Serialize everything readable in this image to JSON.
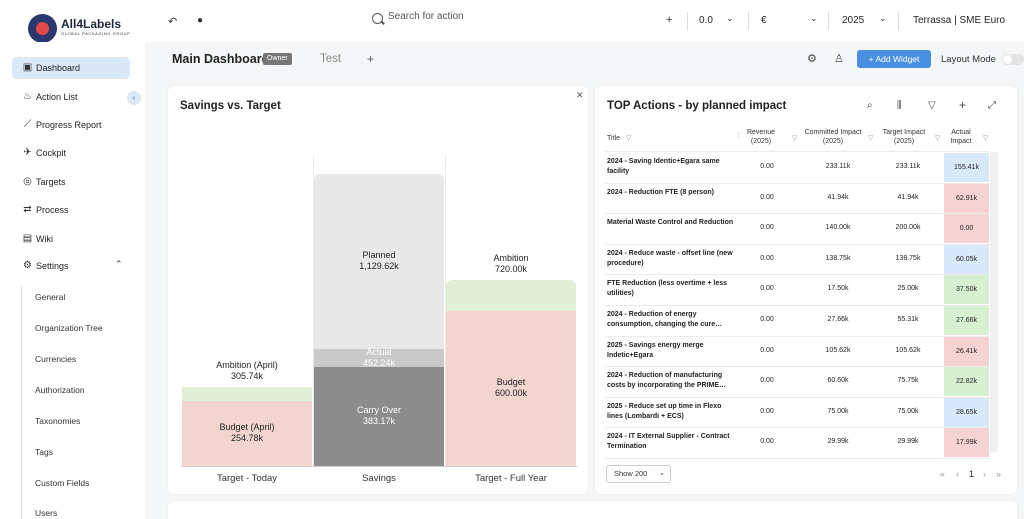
{
  "brand": {
    "name": "All4Labels",
    "tagline": "GLOBAL PACKAGING GROUP"
  },
  "topbar": {
    "search_placeholder": "Search for action",
    "value_select": "0.0",
    "currency_select": "€",
    "year_select": "2025",
    "org_select": "Terrassa | SME Euro"
  },
  "sidebar": {
    "items": [
      {
        "label": "Dashboard",
        "icon": "dashboard-icon"
      },
      {
        "label": "Action List",
        "icon": "flame-icon"
      },
      {
        "label": "Progress Report",
        "icon": "chart-line-icon"
      },
      {
        "label": "Cockpit",
        "icon": "plane-icon"
      },
      {
        "label": "Targets",
        "icon": "target-icon"
      },
      {
        "label": "Process",
        "icon": "process-icon"
      },
      {
        "label": "Wiki",
        "icon": "book-icon"
      },
      {
        "label": "Settings",
        "icon": "gear-icon"
      }
    ],
    "settings_items": [
      "General",
      "Organization Tree",
      "Currencies",
      "Authorization",
      "Taxonomies",
      "Tags",
      "Custom Fields",
      "Users"
    ]
  },
  "header": {
    "title": "Main Dashboard",
    "badge": "Owner",
    "tab2": "Test",
    "add_widget": "Add Widget",
    "layout_mode": "Layout Mode"
  },
  "savings_card": {
    "title": "Savings vs. Target",
    "labels": {
      "ambition_april": "Ambition (April)",
      "ambition_april_value": "305.74k",
      "budget_april": "Budget (April)",
      "budget_april_value": "254.78k",
      "planned": "Planned",
      "planned_value": "1,129.62k",
      "actual": "Actual",
      "actual_value": "452.24k",
      "carry_over": "Carry Over",
      "carry_over_value": "383.17k",
      "ambition": "Ambition",
      "ambition_value": "720.00k",
      "budget": "Budget",
      "budget_value": "600.00k"
    },
    "categories": [
      "Target - Today",
      "Savings",
      "Target - Full Year"
    ]
  },
  "chart_data": {
    "type": "bar",
    "categories": [
      "Target - Today",
      "Savings",
      "Target - Full Year"
    ],
    "series": [
      {
        "name": "Budget (April)",
        "category": "Target - Today",
        "value": 254.78
      },
      {
        "name": "Ambition (April)",
        "category": "Target - Today",
        "value": 305.74
      },
      {
        "name": "Carry Over",
        "category": "Savings",
        "value": 383.17
      },
      {
        "name": "Actual",
        "category": "Savings",
        "value": 452.24
      },
      {
        "name": "Planned",
        "category": "Savings",
        "value": 1129.62
      },
      {
        "name": "Budget",
        "category": "Target - Full Year",
        "value": 600.0
      },
      {
        "name": "Ambition",
        "category": "Target - Full Year",
        "value": 720.0
      }
    ],
    "colors": {
      "budget": "#f3d5cf",
      "ambition": "#e2efd6",
      "carry_over": "#8c8c8c",
      "actual": "#c9c9c9",
      "planned": "#e8e8e8"
    },
    "grid": false
  },
  "table_card": {
    "title": "TOP Actions - by planned impact",
    "columns": [
      "Title",
      "Revenue (2025)",
      "Committed Impact (2025)",
      "Target Impact (2025)",
      "Actual Impact"
    ],
    "rows": [
      {
        "title": "2024 - Saving Identic+Egara same facility",
        "revenue": "0.00",
        "committed": "233.11k",
        "target": "233.11k",
        "actual": "155.41k",
        "status": "blue"
      },
      {
        "title": "2024 - Reduction FTE (8 person)",
        "revenue": "0.00",
        "committed": "41.94k",
        "target": "41.94k",
        "actual": "62.91k",
        "status": "red"
      },
      {
        "title": "Material Waste Control and Reduction",
        "revenue": "0.00",
        "committed": "140.00k",
        "target": "200.00k",
        "actual": "0.00",
        "status": "red"
      },
      {
        "title": "2024 - Reduce waste - offset line (new procedure)",
        "revenue": "0.00",
        "committed": "138.75k",
        "target": "138.75k",
        "actual": "60.05k",
        "status": "blue"
      },
      {
        "title": "FTE Reduction (less overtime + less utilities)",
        "revenue": "0.00",
        "committed": "17.50k",
        "target": "25.00k",
        "actual": "37.50k",
        "status": "green"
      },
      {
        "title": "2024 - Reduction of energy consumption, changing the cure…",
        "revenue": "0.00",
        "committed": "27.66k",
        "target": "55.31k",
        "actual": "27.66k",
        "status": "green"
      },
      {
        "title": "2025 - Savings energy merge Indetic+Egara",
        "revenue": "0.00",
        "committed": "105.62k",
        "target": "105.62k",
        "actual": "26.41k",
        "status": "red"
      },
      {
        "title": "2024 - Reduction of manufacturing costs by incorporating the PRIME…",
        "revenue": "0.00",
        "committed": "60.60k",
        "target": "75.75k",
        "actual": "22.82k",
        "status": "green"
      },
      {
        "title": "2025 - Reduce set up time in Flexo lines (Lombardi + ECS)",
        "revenue": "0.00",
        "committed": "75.00k",
        "target": "75.00k",
        "actual": "28.65k",
        "status": "blue"
      },
      {
        "title": "2024 - IT External Supplier - Contract Termination",
        "revenue": "0.00",
        "committed": "29.99k",
        "target": "29.99k",
        "actual": "17.99k",
        "status": "red"
      }
    ],
    "status_colors": {
      "blue": "#d8e9f9",
      "red": "#f6d3d3",
      "green": "#d7f0d2"
    },
    "page_size": "Show 200",
    "page": "1"
  }
}
